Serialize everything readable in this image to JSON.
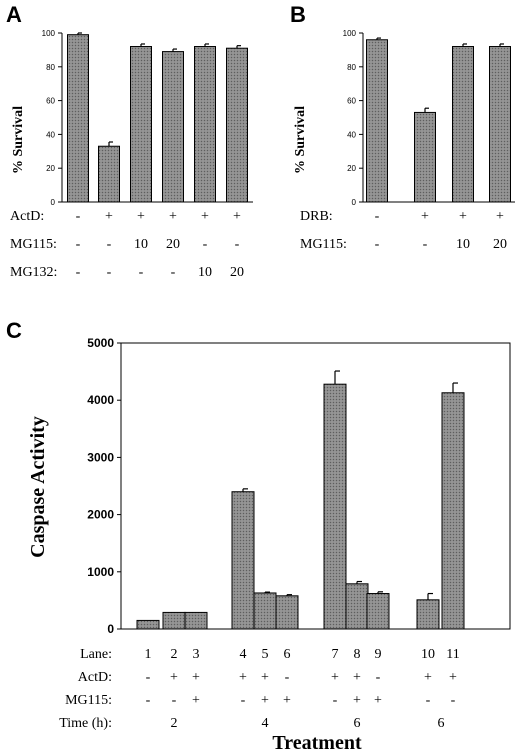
{
  "figure": {
    "panels": [
      {
        "letter": "A"
      },
      {
        "letter": "B"
      },
      {
        "letter": "C"
      }
    ]
  },
  "chart_data": [
    {
      "type": "bar",
      "panel": "A",
      "ylabel": "% Survival",
      "ylim": [
        0,
        100
      ],
      "yticks": [
        0,
        20,
        40,
        60,
        80,
        100
      ],
      "values": [
        99,
        33,
        92,
        89,
        92,
        91
      ],
      "errors": [
        1,
        2.5,
        1.5,
        1.5,
        1.5,
        1.5
      ],
      "treatment_rows": [
        {
          "label": "ActD:",
          "cells": [
            "-",
            "+",
            "+",
            "+",
            "+",
            "+"
          ]
        },
        {
          "label": "MG115:",
          "cells": [
            "-",
            "-",
            "10",
            "20",
            "-",
            "-"
          ]
        },
        {
          "label": "MG132:",
          "cells": [
            "-",
            "-",
            "-",
            "-",
            "10",
            "20"
          ]
        }
      ]
    },
    {
      "type": "bar",
      "panel": "B",
      "ylabel": "% Survival",
      "ylim": [
        0,
        100
      ],
      "yticks": [
        0,
        20,
        40,
        60,
        80,
        100
      ],
      "values": [
        96,
        53,
        92,
        92
      ],
      "errors": [
        1,
        2.5,
        1.5,
        1.5
      ],
      "treatment_rows": [
        {
          "label": "DRB:",
          "cells": [
            "-",
            "+",
            "+",
            "+"
          ]
        },
        {
          "label": "MG115:",
          "cells": [
            "-",
            "-",
            "10",
            "20"
          ]
        }
      ]
    },
    {
      "type": "bar",
      "panel": "C",
      "ylabel": "Caspase Activity",
      "xlabel": "Treatment",
      "ylim": [
        0,
        5000
      ],
      "yticks": [
        0,
        1000,
        2000,
        3000,
        4000,
        5000
      ],
      "lanes": [
        "1",
        "2",
        "3",
        "4",
        "5",
        "6",
        "7",
        "8",
        "9",
        "10",
        "11"
      ],
      "values": [
        150,
        290,
        290,
        2400,
        630,
        580,
        4280,
        790,
        620,
        510,
        4130
      ],
      "errors": [
        0,
        0,
        0,
        50,
        15,
        20,
        230,
        40,
        30,
        110,
        170
      ],
      "treatment_rows": [
        {
          "label": "Lane:",
          "cells": [
            "1",
            "2",
            "3",
            "4",
            "5",
            "6",
            "7",
            "8",
            "9",
            "10",
            "11"
          ]
        },
        {
          "label": "ActD:",
          "cells": [
            "-",
            "+",
            "+",
            "+",
            "+",
            "-",
            "+",
            "+",
            "-",
            "+",
            "+"
          ]
        },
        {
          "label": "MG115:",
          "cells": [
            "-",
            "-",
            "+",
            "-",
            "+",
            "+",
            "-",
            "+",
            "+",
            "-",
            "-"
          ]
        },
        {
          "label": "Time (h):",
          "groups": [
            "2",
            "4",
            "6",
            "6"
          ]
        }
      ]
    }
  ]
}
